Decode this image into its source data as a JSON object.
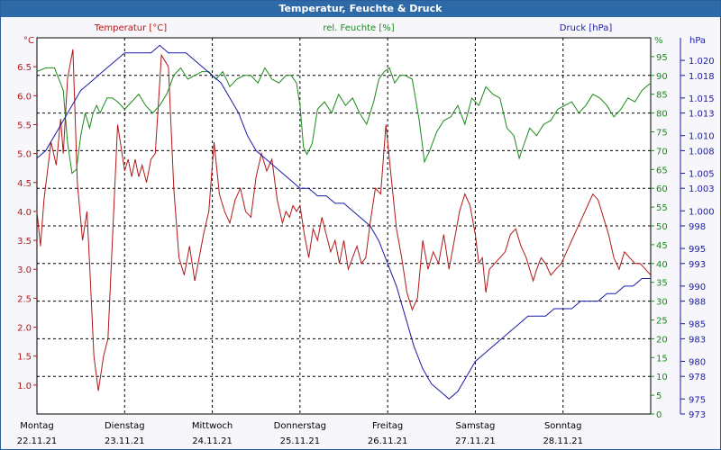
{
  "window": {
    "title": "Temperatur, Feuchte & Druck"
  },
  "chart_data": {
    "type": "line",
    "title": "Temperatur, Feuchte & Druck",
    "x_range": [
      0,
      7
    ],
    "x_days": [
      {
        "day": "Montag",
        "date": "22.11.21"
      },
      {
        "day": "Dienstag",
        "date": "23.11.21"
      },
      {
        "day": "Mittwoch",
        "date": "24.11.21"
      },
      {
        "day": "Donnerstag",
        "date": "25.11.21"
      },
      {
        "day": "Freitag",
        "date": "26.11.21"
      },
      {
        "day": "Samstag",
        "date": "27.11.21"
      },
      {
        "day": "Sonntag",
        "date": "28.11.21"
      }
    ],
    "axes": {
      "temperature": {
        "label": "Temperatur [°C]",
        "unit": "°C",
        "color": "#b01818",
        "range": [
          0.5,
          7.0
        ],
        "ticks": [
          "1.0",
          "1.5",
          "2.0",
          "2.5",
          "3.0",
          "3.5",
          "4.0",
          "4.5",
          "5.0",
          "5.5",
          "6.0",
          "6.5"
        ]
      },
      "humidity": {
        "label": "rel. Feuchte [%]",
        "unit": "%",
        "color": "#1a8a1a",
        "range": [
          0,
          100
        ],
        "ticks": [
          "0",
          "5",
          "10",
          "15",
          "20",
          "25",
          "30",
          "35",
          "40",
          "45",
          "50",
          "55",
          "60",
          "65",
          "70",
          "75",
          "80",
          "85",
          "90",
          "95"
        ]
      },
      "pressure": {
        "label": "Druck [hPa]",
        "unit": "hPa",
        "color": "#1a1aa8",
        "range": [
          973,
          1023
        ],
        "ticks": [
          "973",
          "975",
          "978",
          "980",
          "983",
          "985",
          "988",
          "990",
          "993",
          "995",
          "998",
          "1.000",
          "1.003",
          "1.005",
          "1.008",
          "1.010",
          "1.013",
          "1.015",
          "1.018",
          "1.020"
        ]
      }
    },
    "series": [
      {
        "name": "Temperatur",
        "axis": "temperature",
        "x": [
          0,
          0.04,
          0.08,
          0.12,
          0.16,
          0.22,
          0.27,
          0.3,
          0.35,
          0.41,
          0.46,
          0.52,
          0.57,
          0.6,
          0.65,
          0.7,
          0.76,
          0.81,
          0.86,
          0.92,
          0.97,
          1.0,
          1.04,
          1.08,
          1.12,
          1.16,
          1.2,
          1.25,
          1.3,
          1.35,
          1.42,
          1.5,
          1.56,
          1.62,
          1.68,
          1.74,
          1.8,
          1.85,
          1.9,
          1.96,
          2.02,
          2.08,
          2.14,
          2.2,
          2.26,
          2.32,
          2.38,
          2.44,
          2.5,
          2.56,
          2.62,
          2.68,
          2.74,
          2.8,
          2.84,
          2.88,
          2.92,
          2.96,
          3.0,
          3.05,
          3.1,
          3.15,
          3.2,
          3.25,
          3.3,
          3.35,
          3.4,
          3.45,
          3.5,
          3.55,
          3.6,
          3.65,
          3.7,
          3.75,
          3.8,
          3.86,
          3.92,
          3.98,
          4.04,
          4.1,
          4.16,
          4.22,
          4.28,
          4.34,
          4.4,
          4.46,
          4.52,
          4.58,
          4.64,
          4.7,
          4.76,
          4.82,
          4.88,
          4.94,
          5.0,
          5.04,
          5.08,
          5.12,
          5.16,
          5.22,
          5.28,
          5.34,
          5.4,
          5.46,
          5.52,
          5.58,
          5.62,
          5.66,
          5.7,
          5.75,
          5.8,
          5.86,
          5.92,
          5.98,
          6.04,
          6.1,
          6.16,
          6.22,
          6.28,
          6.34,
          6.4,
          6.46,
          6.52,
          6.58,
          6.64,
          6.7,
          6.76,
          6.82,
          6.88,
          6.94,
          7.0
        ],
        "values": [
          4.0,
          3.4,
          4.2,
          4.7,
          5.2,
          4.8,
          5.6,
          5.0,
          6.3,
          6.8,
          4.5,
          3.5,
          4.0,
          3.1,
          1.5,
          0.9,
          1.5,
          1.8,
          3.5,
          5.5,
          5.0,
          4.7,
          4.9,
          4.6,
          4.9,
          4.6,
          4.8,
          4.5,
          4.9,
          5.0,
          6.7,
          6.5,
          4.4,
          3.2,
          2.9,
          3.4,
          2.8,
          3.2,
          3.6,
          4.0,
          5.2,
          4.3,
          4.0,
          3.8,
          4.2,
          4.4,
          4.0,
          3.9,
          4.6,
          5.0,
          4.7,
          4.9,
          4.2,
          3.8,
          4.0,
          3.9,
          4.1,
          4.0,
          4.1,
          3.6,
          3.2,
          3.7,
          3.5,
          3.9,
          3.6,
          3.3,
          3.5,
          3.1,
          3.5,
          3.0,
          3.2,
          3.4,
          3.1,
          3.2,
          3.8,
          4.4,
          4.3,
          5.5,
          4.6,
          3.7,
          3.2,
          2.6,
          2.3,
          2.5,
          3.5,
          3.0,
          3.3,
          3.1,
          3.6,
          3.0,
          3.5,
          4.0,
          4.3,
          4.1,
          3.6,
          3.1,
          3.2,
          2.6,
          3.0,
          3.1,
          3.2,
          3.3,
          3.6,
          3.7,
          3.4,
          3.2,
          3.0,
          2.8,
          3.0,
          3.2,
          3.1,
          2.9,
          3.0,
          3.1,
          3.3,
          3.5,
          3.7,
          3.9,
          4.1,
          4.3,
          4.2,
          3.9,
          3.6,
          3.2,
          3.0,
          3.3,
          3.2,
          3.1,
          3.1,
          3.0,
          2.9
        ],
        "color": "#b01818"
      },
      {
        "name": "rel. Feuchte",
        "axis": "humidity",
        "x": [
          0,
          0.1,
          0.2,
          0.3,
          0.35,
          0.4,
          0.45,
          0.5,
          0.55,
          0.6,
          0.64,
          0.68,
          0.72,
          0.76,
          0.8,
          0.86,
          0.92,
          1.0,
          1.08,
          1.16,
          1.24,
          1.32,
          1.4,
          1.48,
          1.56,
          1.64,
          1.72,
          1.8,
          1.88,
          1.96,
          2.04,
          2.12,
          2.2,
          2.28,
          2.36,
          2.44,
          2.52,
          2.6,
          2.68,
          2.76,
          2.84,
          2.9,
          2.96,
          3.0,
          3.04,
          3.08,
          3.14,
          3.2,
          3.28,
          3.36,
          3.44,
          3.52,
          3.6,
          3.68,
          3.76,
          3.84,
          3.9,
          3.96,
          4.02,
          4.08,
          4.14,
          4.2,
          4.28,
          4.36,
          4.42,
          4.48,
          4.56,
          4.64,
          4.72,
          4.8,
          4.88,
          4.96,
          5.04,
          5.12,
          5.2,
          5.28,
          5.36,
          5.44,
          5.5,
          5.56,
          5.62,
          5.7,
          5.78,
          5.86,
          5.94,
          6.02,
          6.1,
          6.18,
          6.26,
          6.34,
          6.42,
          6.5,
          6.58,
          6.66,
          6.74,
          6.82,
          6.9,
          6.95,
          7.0
        ],
        "values": [
          91,
          92,
          92,
          86,
          72,
          64,
          65,
          74,
          80,
          76,
          80,
          82,
          80,
          82,
          84,
          84,
          83,
          81,
          83,
          85,
          82,
          80,
          82,
          85,
          90,
          92,
          89,
          90,
          91,
          91,
          89,
          91,
          87,
          89,
          90,
          90,
          88,
          92,
          89,
          88,
          90,
          90,
          88,
          82,
          71,
          69,
          72,
          81,
          83,
          80,
          85,
          82,
          84,
          80,
          77,
          83,
          89,
          91,
          92,
          88,
          90,
          90,
          89,
          78,
          67,
          70,
          75,
          78,
          79,
          82,
          77,
          84,
          82,
          87,
          85,
          84,
          76,
          74,
          68,
          72,
          76,
          74,
          77,
          78,
          81,
          82,
          83,
          80,
          82,
          85,
          84,
          82,
          79,
          81,
          84,
          83,
          86,
          87,
          88
        ],
        "color": "#1a8a1a"
      },
      {
        "name": "Druck",
        "axis": "pressure",
        "x": [
          0,
          0.1,
          0.2,
          0.3,
          0.4,
          0.5,
          0.6,
          0.7,
          0.8,
          0.9,
          1.0,
          1.1,
          1.2,
          1.3,
          1.4,
          1.5,
          1.6,
          1.7,
          1.8,
          1.9,
          2.0,
          2.1,
          2.2,
          2.3,
          2.4,
          2.5,
          2.6,
          2.7,
          2.8,
          2.9,
          3.0,
          3.1,
          3.2,
          3.3,
          3.4,
          3.5,
          3.6,
          3.7,
          3.8,
          3.9,
          4.0,
          4.1,
          4.2,
          4.3,
          4.4,
          4.5,
          4.6,
          4.7,
          4.8,
          4.9,
          5.0,
          5.1,
          5.2,
          5.3,
          5.4,
          5.5,
          5.6,
          5.7,
          5.8,
          5.9,
          6.0,
          6.1,
          6.2,
          6.3,
          6.4,
          6.5,
          6.6,
          6.7,
          6.8,
          6.9,
          7.0
        ],
        "values": [
          1007,
          1008,
          1010,
          1012,
          1014,
          1016,
          1017,
          1018,
          1019,
          1020,
          1021,
          1021,
          1021,
          1021,
          1022,
          1021,
          1021,
          1021,
          1020,
          1019,
          1018,
          1017,
          1015,
          1013,
          1010,
          1008,
          1007,
          1006,
          1005,
          1004,
          1003,
          1003,
          1002,
          1002,
          1001,
          1001,
          1000,
          999,
          998,
          996,
          993,
          990,
          986,
          982,
          979,
          977,
          976,
          975,
          976,
          978,
          980,
          981,
          982,
          983,
          984,
          985,
          986,
          986,
          986,
          987,
          987,
          987,
          988,
          988,
          988,
          989,
          989,
          990,
          990,
          991,
          991
        ],
        "color": "#1a1aa8"
      }
    ]
  }
}
